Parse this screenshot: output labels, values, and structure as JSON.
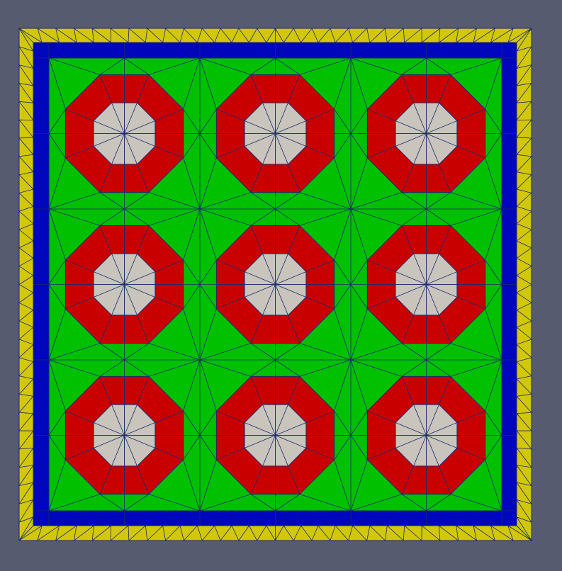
{
  "scene": {
    "background_color": "#565b6f",
    "edge_color": "#1b2a6b",
    "regions": {
      "outer_ring": {
        "color": "#d2c70a"
      },
      "border_band": {
        "color": "#0006bb"
      },
      "moderator": {
        "color": "#00c000"
      },
      "cladding": {
        "color": "#c80000"
      },
      "fuel": {
        "color": "#c9c5bd"
      }
    },
    "lattice": {
      "rows": 3,
      "cols": 3,
      "pin_shape": "octagon",
      "mesh_type": "triangular"
    }
  }
}
